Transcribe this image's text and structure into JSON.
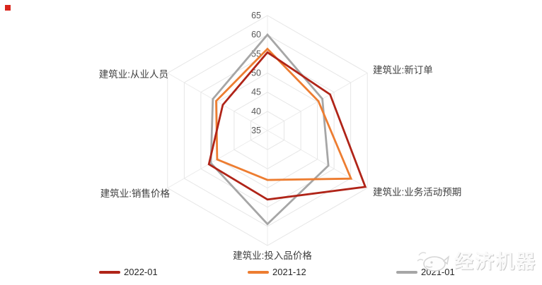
{
  "chart_data": {
    "type": "radar",
    "title": "",
    "axis_min": 35,
    "axis_max": 65,
    "tick_step": 5,
    "ticks": [
      35,
      40,
      45,
      50,
      55,
      60,
      65
    ],
    "grid": "hexagonal-rings",
    "legend_position": "bottom",
    "axes": [
      {
        "label": "",
        "position": "top"
      },
      {
        "label": "建筑业:新订单",
        "position": "upper-right"
      },
      {
        "label": "建筑业:业务活动预期",
        "position": "lower-right"
      },
      {
        "label": "建筑业:投入品价格",
        "position": "bottom"
      },
      {
        "label": "建筑业:销售价格",
        "position": "lower-left"
      },
      {
        "label": "建筑业:从业人员",
        "position": "upper-left"
      }
    ],
    "series": [
      {
        "name": "2022-01",
        "color": "#b02418",
        "values": [
          55.4,
          53.8,
          64.4,
          53.0,
          52.6,
          48.4
        ]
      },
      {
        "name": "2021-12",
        "color": "#ed7d31",
        "values": [
          56.3,
          50.3,
          60.1,
          47.9,
          50.1,
          50.4
        ]
      },
      {
        "name": "2021-01",
        "color": "#a6a6a6",
        "values": [
          60.0,
          51.5,
          53.3,
          59.4,
          52.0,
          51.4
        ]
      }
    ],
    "colors": {
      "ring_line": "#e6e6e6",
      "spoke_line": "#ececec",
      "tick_text": "#595959",
      "axis_label_text": "#404040"
    }
  },
  "page": {
    "corner_marker_color": "#d9261c",
    "background": "#ffffff"
  },
  "watermark": {
    "text": "经济机器",
    "logo": "whale-logo"
  }
}
